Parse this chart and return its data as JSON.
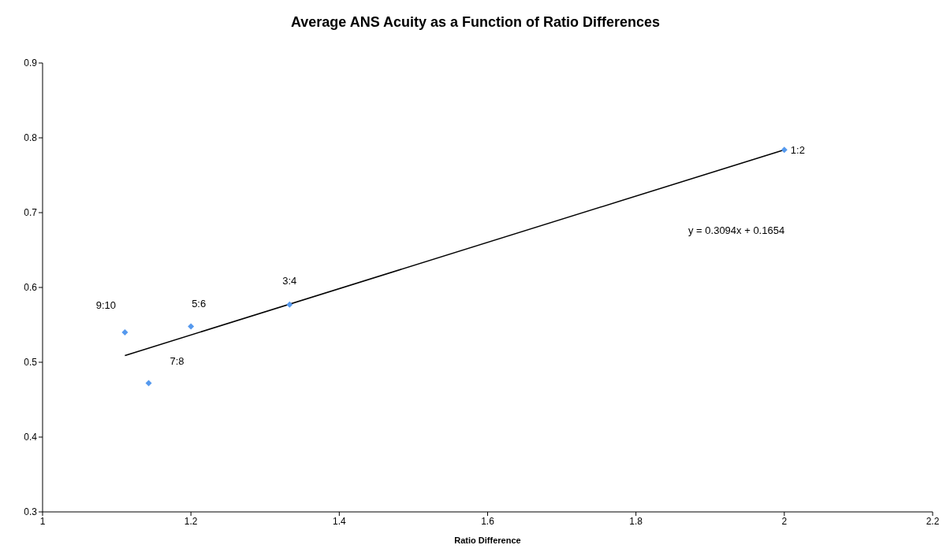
{
  "chart_data": {
    "type": "scatter",
    "title": "Average ANS Acuity as a Function of Ratio Differences",
    "xlabel": "Ratio Difference",
    "x": [
      1.111,
      1.143,
      1.2,
      1.333,
      2
    ],
    "series": [
      {
        "color": "#5599ee",
        "values": [
          0.54,
          0.472,
          0.548,
          0.577,
          0.784
        ],
        "marker": "diamond"
      },
      {
        "type": "line",
        "color": "#000000",
        "x": [
          1.111,
          2
        ],
        "values": [
          0.509,
          0.784
        ],
        "marker": "none",
        "line_style": "solid"
      }
    ],
    "annotations": [
      {
        "text": "9:10",
        "x": 1.111,
        "y": 0.54
      },
      {
        "text": "7:8",
        "x": 1.143,
        "y": 0.472
      },
      {
        "text": "5:6",
        "x": 1.2,
        "y": 0.548
      },
      {
        "text": "3:4",
        "x": 1.333,
        "y": 0.577
      },
      {
        "text": "1:2",
        "x": 2,
        "y": 0.784
      },
      "y = 0.3094x + 0.1654"
    ],
    "xlim": [
      1,
      2.2
    ],
    "xticks": [
      1,
      1.2,
      1.4,
      1.6,
      1.8,
      2,
      2.2
    ],
    "ylim": [
      0.3,
      0.9
    ],
    "yticks": [
      0.3,
      0.4,
      0.5,
      0.6,
      0.7,
      0.8,
      0.9
    ],
    "grid": false,
    "legend": false
  }
}
